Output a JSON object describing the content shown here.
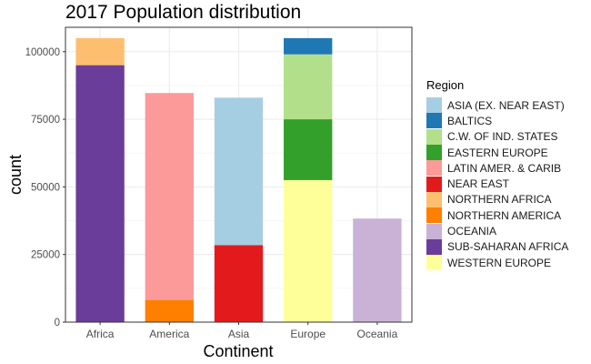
{
  "chart_data": {
    "type": "bar",
    "stacked": true,
    "title": "2017 Population distribution",
    "xlabel": "Continent",
    "ylabel": "count",
    "categories": [
      "Africa",
      "America",
      "Asia",
      "Europe",
      "Oceania"
    ],
    "ylim": [
      0,
      109000
    ],
    "yticks": [
      0,
      25000,
      50000,
      75000,
      100000
    ],
    "ytick_labels": [
      "0",
      "25000",
      "50000",
      "75000",
      "100000"
    ],
    "grid": true,
    "legend_placement": "right",
    "legend_title": "Region",
    "series": [
      {
        "name": "ASIA (EX. NEAR EAST)",
        "color": "#A6CEE3",
        "values": [
          0,
          0,
          54500,
          0,
          0
        ]
      },
      {
        "name": "BALTICS",
        "color": "#1F78B4",
        "values": [
          0,
          0,
          0,
          6000,
          0
        ]
      },
      {
        "name": "C.W. OF IND. STATES",
        "color": "#B2DF8A",
        "values": [
          0,
          0,
          0,
          24000,
          0
        ]
      },
      {
        "name": "EASTERN EUROPE",
        "color": "#33A02C",
        "values": [
          0,
          0,
          0,
          22500,
          0
        ]
      },
      {
        "name": "LATIN AMER. & CARIB",
        "color": "#FB9A99",
        "values": [
          0,
          76500,
          0,
          0,
          0
        ]
      },
      {
        "name": "NEAR EAST",
        "color": "#E31A1C",
        "values": [
          0,
          0,
          28500,
          0,
          0
        ]
      },
      {
        "name": "NORTHERN AFRICA",
        "color": "#FDBF6F",
        "values": [
          10000,
          0,
          0,
          0,
          0
        ]
      },
      {
        "name": "NORTHERN AMERICA",
        "color": "#FF7F00",
        "values": [
          0,
          8200,
          0,
          0,
          0
        ]
      },
      {
        "name": "OCEANIA",
        "color": "#CAB2D6",
        "values": [
          0,
          0,
          0,
          0,
          38300
        ]
      },
      {
        "name": "SUB-SAHARAN AFRICA",
        "color": "#6A3D9A",
        "values": [
          95000,
          0,
          0,
          0,
          0
        ]
      },
      {
        "name": "WESTERN EUROPE",
        "color": "#FFFF99",
        "values": [
          0,
          0,
          0,
          52500,
          0
        ]
      }
    ]
  }
}
